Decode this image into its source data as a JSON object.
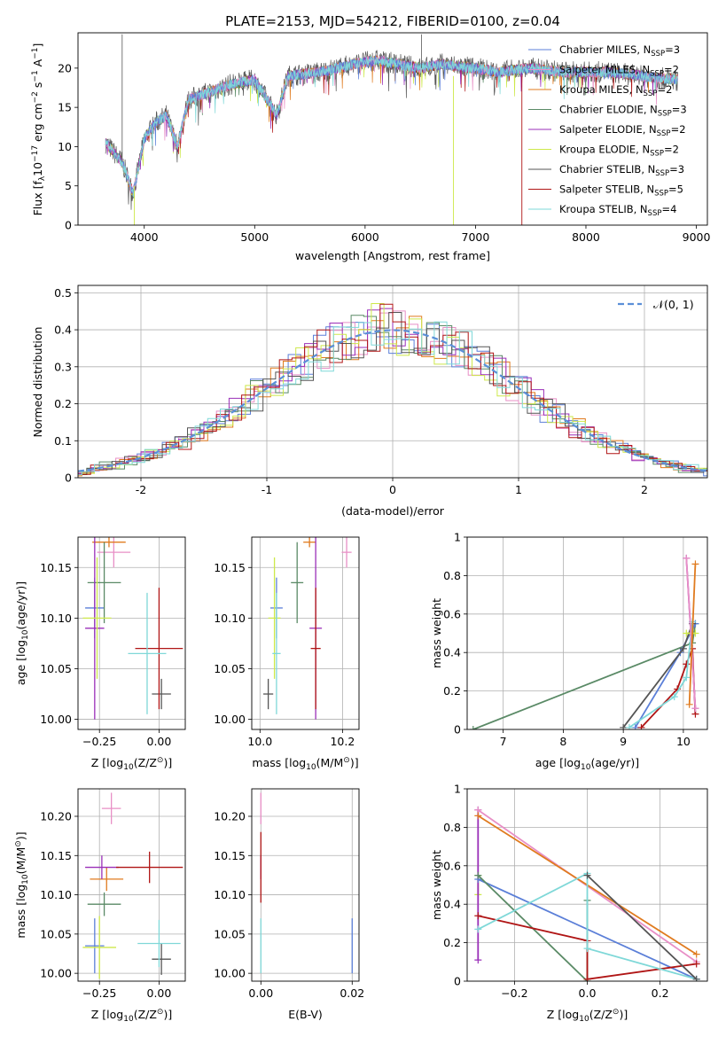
{
  "title": "PLATE=2153, MJD=54212, FIBERID=0100, z=0.04",
  "colors": {
    "chabrier_miles": "#5b7fd8",
    "salpeter_miles": "#e88fc6",
    "kroupa_miles": "#e07b1f",
    "chabrier_elodie": "#5a8a66",
    "salpeter_elodie": "#9a2fb8",
    "kroupa_elodie": "#cde84a",
    "chabrier_stelib": "#555555",
    "salpeter_stelib": "#b01515",
    "kroupa_stelib": "#7fd8d8",
    "normal": "#5b8fd8",
    "grid": "#b0b0b0"
  },
  "chart_data": [
    {
      "id": "spectrum",
      "type": "line",
      "title": "PLATE=2153, MJD=54212, FIBERID=0100, z=0.04",
      "xlabel": "wavelength [Angstrom, rest frame]",
      "ylabel": "Flux [f",
      "ylabel_parts": [
        "Flux [f",
        "λ",
        "10",
        "−17",
        " erg cm",
        "−2",
        " s",
        "−1",
        " A",
        "−1",
        "]"
      ],
      "xlim": [
        3400,
        9100
      ],
      "ylim": [
        0,
        24.5
      ],
      "xticks": [
        4000,
        5000,
        6000,
        7000,
        8000,
        9000
      ],
      "yticks": [
        0,
        5,
        10,
        15,
        20
      ],
      "grid": false,
      "legend_position": "top-right",
      "legend": [
        {
          "name": "Chabrier MILES, N",
          "sub": "SSP",
          "suffix": "=3"
        },
        {
          "name": "Salpeter MILES, N",
          "sub": "SSP",
          "suffix": "=2"
        },
        {
          "name": "Kroupa MILES, N",
          "sub": "SSP",
          "suffix": "=2"
        },
        {
          "name": "Chabrier ELODIE, N",
          "sub": "SSP",
          "suffix": "=3"
        },
        {
          "name": "Salpeter ELODIE, N",
          "sub": "SSP",
          "suffix": "=2"
        },
        {
          "name": "Kroupa ELODIE, N",
          "sub": "SSP",
          "suffix": "=2"
        },
        {
          "name": "Chabrier STELIB, N",
          "sub": "SSP",
          "suffix": "=3"
        },
        {
          "name": "Salpeter STELIB, N",
          "sub": "SSP",
          "suffix": "=5"
        },
        {
          "name": "Kroupa STELIB, N",
          "sub": "SSP",
          "suffix": "=4"
        }
      ],
      "spectrum_range": [
        3650,
        8830
      ],
      "envelope_points": [
        [
          3650,
          10.5
        ],
        [
          3800,
          8
        ],
        [
          3900,
          4
        ],
        [
          4000,
          11
        ],
        [
          4100,
          13
        ],
        [
          4200,
          14
        ],
        [
          4300,
          10
        ],
        [
          4400,
          16
        ],
        [
          4600,
          17
        ],
        [
          4800,
          18
        ],
        [
          5000,
          18.5
        ],
        [
          5200,
          14
        ],
        [
          5300,
          19
        ],
        [
          5600,
          19.5
        ],
        [
          5900,
          20.5
        ],
        [
          6100,
          21
        ],
        [
          6300,
          20.5
        ],
        [
          6500,
          20
        ],
        [
          6700,
          20.5
        ],
        [
          7000,
          20
        ],
        [
          7200,
          19.5
        ],
        [
          7500,
          20
        ],
        [
          7800,
          19.5
        ],
        [
          8200,
          19.5
        ],
        [
          8500,
          19
        ],
        [
          8830,
          18.5
        ]
      ]
    },
    {
      "id": "residuals",
      "type": "histogram",
      "xlabel": "(data-model)/error",
      "ylabel": "Normed distribution",
      "xlim": [
        -2.5,
        2.5
      ],
      "ylim": [
        0,
        0.52
      ],
      "xticks": [
        -2,
        -1,
        0,
        1,
        2
      ],
      "yticks": [
        0.0,
        0.1,
        0.2,
        0.3,
        0.4,
        0.5
      ],
      "grid": true,
      "bin_width": 0.1,
      "legend_position": "top-right",
      "legend_label": "𝒩(0, 1)"
    },
    {
      "id": "age_vs_Z",
      "type": "scatter",
      "xlabel_parts": [
        "Z [log",
        "10",
        "(Z/Z",
        "⊙",
        ")]"
      ],
      "ylabel_parts": [
        "age  [log",
        "10",
        "(age/yr)]"
      ],
      "xlim": [
        -0.34,
        0.11
      ],
      "ylim": [
        9.99,
        10.18
      ],
      "xticks": [
        -0.25,
        0.0
      ],
      "xticklabels": [
        "−0.25",
        "0.00"
      ],
      "yticks": [
        10.0,
        10.05,
        10.1,
        10.15
      ],
      "yticklabels": [
        "10.00",
        "10.05",
        "10.10",
        "10.15"
      ],
      "grid": true,
      "points": [
        {
          "model": "chabrier_miles",
          "x": -0.27,
          "xerr": 0.04,
          "y": 10.11,
          "yerr": 0.03
        },
        {
          "model": "salpeter_miles",
          "x": -0.19,
          "xerr": 0.07,
          "y": 10.165,
          "yerr": 0.015
        },
        {
          "model": "kroupa_miles",
          "x": -0.21,
          "xerr": 0.07,
          "y": 10.175,
          "yerr": 0.005
        },
        {
          "model": "chabrier_elodie",
          "x": -0.23,
          "xerr": 0.07,
          "y": 10.135,
          "yerr": 0.04
        },
        {
          "model": "salpeter_elodie",
          "x": -0.27,
          "xerr": 0.04,
          "y": 10.09,
          "yerr": 0.09
        },
        {
          "model": "kroupa_elodie",
          "x": -0.26,
          "xerr": 0.06,
          "y": 10.1,
          "yerr": 0.06
        },
        {
          "model": "chabrier_stelib",
          "x": 0.01,
          "xerr": 0.04,
          "y": 10.025,
          "yerr": 0.015
        },
        {
          "model": "salpeter_stelib",
          "x": -0.0,
          "xerr": 0.1,
          "y": 10.07,
          "yerr": 0.06
        },
        {
          "model": "kroupa_stelib",
          "x": -0.05,
          "xerr": 0.08,
          "y": 10.065,
          "yerr": 0.06
        }
      ]
    },
    {
      "id": "age_vs_mass",
      "type": "scatter",
      "xlabel_parts": [
        "mass [log",
        "10",
        "(M/M",
        "⊙",
        ")]"
      ],
      "xlim": [
        9.98,
        10.24
      ],
      "ylim": [
        9.99,
        10.18
      ],
      "xticks": [
        10.0,
        10.2
      ],
      "xticklabels": [
        "10.0",
        "10.2"
      ],
      "yticks": [
        10.0,
        10.05,
        10.1,
        10.15
      ],
      "yticklabels": [
        "10.00",
        "10.05",
        "10.10",
        "10.15"
      ],
      "grid": true,
      "points": [
        {
          "model": "chabrier_miles",
          "x": 10.04,
          "xerr": 0.015,
          "y": 10.11,
          "yerr": 0.03
        },
        {
          "model": "salpeter_miles",
          "x": 10.21,
          "xerr": 0.012,
          "y": 10.165,
          "yerr": 0.015
        },
        {
          "model": "kroupa_miles",
          "x": 10.12,
          "xerr": 0.015,
          "y": 10.175,
          "yerr": 0.005
        },
        {
          "model": "chabrier_elodie",
          "x": 10.09,
          "xerr": 0.015,
          "y": 10.135,
          "yerr": 0.04
        },
        {
          "model": "salpeter_elodie",
          "x": 10.135,
          "xerr": 0.015,
          "y": 10.09,
          "yerr": 0.09
        },
        {
          "model": "kroupa_elodie",
          "x": 10.035,
          "xerr": 0.015,
          "y": 10.1,
          "yerr": 0.06
        },
        {
          "model": "chabrier_stelib",
          "x": 10.02,
          "xerr": 0.012,
          "y": 10.025,
          "yerr": 0.015
        },
        {
          "model": "salpeter_stelib",
          "x": 10.135,
          "xerr": 0.012,
          "y": 10.07,
          "yerr": 0.06
        },
        {
          "model": "kroupa_stelib",
          "x": 10.04,
          "xerr": 0.01,
          "y": 10.065,
          "yerr": 0.06
        }
      ]
    },
    {
      "id": "weight_vs_age",
      "type": "line",
      "xlabel_parts": [
        "age  [log",
        "10",
        "(age/yr)]"
      ],
      "ylabel": "mass weight",
      "xlim": [
        6.4,
        10.4
      ],
      "ylim": [
        0,
        1.0
      ],
      "xticks": [
        7,
        8,
        9,
        10
      ],
      "yticks": [
        0.0,
        0.2,
        0.4,
        0.6,
        0.8,
        1.0
      ],
      "grid": true,
      "series": [
        {
          "model": "chabrier_elodie",
          "x": [
            6.5,
            10.15,
            10.2
          ],
          "y": [
            0.0,
            0.45,
            0.55
          ]
        },
        {
          "model": "chabrier_miles",
          "x": [
            9.2,
            9.95,
            10.2
          ],
          "y": [
            0.01,
            0.4,
            0.55
          ]
        },
        {
          "model": "chabrier_stelib",
          "x": [
            9.0,
            10.0,
            10.15
          ],
          "y": [
            0.01,
            0.42,
            0.55
          ]
        },
        {
          "model": "salpeter_stelib",
          "x": [
            9.3,
            9.9,
            10.05,
            10.15,
            10.2
          ],
          "y": [
            0.01,
            0.21,
            0.34,
            0.42,
            0.08
          ]
        },
        {
          "model": "kroupa_stelib",
          "x": [
            9.1,
            9.85,
            10.05,
            10.15
          ],
          "y": [
            0.01,
            0.17,
            0.27,
            0.56
          ]
        },
        {
          "model": "salpeter_elodie",
          "x": [
            10.05,
            10.2
          ],
          "y": [
            0.89,
            0.11
          ]
        },
        {
          "model": "kroupa_elodie",
          "x": [
            10.05,
            10.2
          ],
          "y": [
            0.5,
            0.5
          ]
        },
        {
          "model": "salpeter_miles",
          "x": [
            10.05,
            10.2
          ],
          "y": [
            0.89,
            0.11
          ]
        },
        {
          "model": "kroupa_miles",
          "x": [
            10.1,
            10.2
          ],
          "y": [
            0.13,
            0.86
          ]
        }
      ]
    },
    {
      "id": "mass_vs_Z",
      "type": "scatter",
      "xlabel_parts": [
        "Z [log",
        "10",
        "(Z/Z",
        "⊙",
        ")]"
      ],
      "ylabel_parts": [
        "mass [log",
        "10",
        "(M/M",
        "⊙",
        ")]"
      ],
      "xlim": [
        -0.34,
        0.11
      ],
      "ylim": [
        9.99,
        10.235
      ],
      "xticks": [
        -0.25,
        0.0
      ],
      "xticklabels": [
        "−0.25",
        "0.00"
      ],
      "yticks": [
        10.0,
        10.05,
        10.1,
        10.15,
        10.2
      ],
      "yticklabels": [
        "10.00",
        "10.05",
        "10.10",
        "10.15",
        "10.20"
      ],
      "grid": true,
      "points": [
        {
          "model": "chabrier_miles",
          "x": -0.27,
          "xerr": 0.04,
          "y": 10.035,
          "yerr": 0.035
        },
        {
          "model": "salpeter_miles",
          "x": -0.2,
          "xerr": 0.04,
          "y": 10.21,
          "yerr": 0.02
        },
        {
          "model": "kroupa_miles",
          "x": -0.22,
          "xerr": 0.07,
          "y": 10.12,
          "yerr": 0.015
        },
        {
          "model": "chabrier_elodie",
          "x": -0.23,
          "xerr": 0.07,
          "y": 10.088,
          "yerr": 0.015
        },
        {
          "model": "salpeter_elodie",
          "x": -0.24,
          "xerr": 0.07,
          "y": 10.135,
          "yerr": 0.015
        },
        {
          "model": "kroupa_elodie",
          "x": -0.25,
          "xerr": 0.07,
          "y": 10.033,
          "yerr": 0.04
        },
        {
          "model": "chabrier_stelib",
          "x": 0.01,
          "xerr": 0.04,
          "y": 10.018,
          "yerr": 0.02
        },
        {
          "model": "salpeter_stelib",
          "x": -0.04,
          "xerr": 0.14,
          "y": 10.135,
          "yerr": 0.02
        },
        {
          "model": "kroupa_stelib",
          "x": 0.0,
          "xerr": 0.09,
          "y": 10.038,
          "yerr": 0.03
        }
      ]
    },
    {
      "id": "mass_vs_ebv",
      "type": "scatter",
      "xlabel": "E(B-V)",
      "xlim": [
        -0.002,
        0.0215
      ],
      "ylim": [
        9.99,
        10.235
      ],
      "xticks": [
        0.0,
        0.02
      ],
      "xticklabels": [
        "0.00",
        "0.02"
      ],
      "yticks": [
        10.0,
        10.05,
        10.1,
        10.15,
        10.2
      ],
      "yticklabels": [
        "10.00",
        "10.05",
        "10.10",
        "10.15",
        "10.20"
      ],
      "grid": true,
      "points": [
        {
          "model": "salpeter_miles",
          "x": 0.0,
          "y": 10.21,
          "yerr": 0.02
        },
        {
          "model": "salpeter_elodie",
          "x": 0.0,
          "y": 10.135,
          "yerr": 0.015
        },
        {
          "model": "salpeter_stelib",
          "x": 0.0,
          "y": 10.135,
          "yerr": 0.045
        },
        {
          "model": "kroupa_stelib",
          "x": 0.0,
          "y": 10.035,
          "yerr": 0.035
        },
        {
          "model": "chabrier_miles",
          "x": 0.02,
          "y": 10.035,
          "yerr": 0.035
        }
      ]
    },
    {
      "id": "weight_vs_Z",
      "type": "line",
      "xlabel_parts": [
        "Z [log",
        "10",
        "(Z/Z",
        "⊙",
        ")]"
      ],
      "ylabel": "mass weight",
      "xlim": [
        -0.33,
        0.33
      ],
      "ylim": [
        0,
        1.0
      ],
      "xticks": [
        -0.2,
        0.0,
        0.2
      ],
      "xticklabels": [
        "−0.2",
        "0.0",
        "0.2"
      ],
      "yticks": [
        0.0,
        0.2,
        0.4,
        0.6,
        0.8,
        1.0
      ],
      "grid": true,
      "series": [
        {
          "model": "kroupa_elodie",
          "x": [
            -0.3,
            -0.3
          ],
          "y": [
            0.55,
            0.45
          ]
        },
        {
          "model": "salpeter_elodie",
          "x": [
            -0.3,
            -0.3
          ],
          "y": [
            0.89,
            0.11
          ]
        },
        {
          "model": "salpeter_miles",
          "x": [
            -0.3,
            0.3
          ],
          "y": [
            0.89,
            0.1
          ]
        },
        {
          "model": "kroupa_miles",
          "x": [
            -0.3,
            0.3
          ],
          "y": [
            0.86,
            0.14
          ]
        },
        {
          "model": "chabrier_miles",
          "x": [
            -0.3,
            0.3
          ],
          "y": [
            0.53,
            0.01
          ]
        },
        {
          "model": "chabrier_elodie",
          "x": [
            -0.3,
            0.0,
            0.0
          ],
          "y": [
            0.55,
            0.0,
            0.42
          ]
        },
        {
          "model": "salpeter_stelib",
          "x": [
            -0.3,
            0.0,
            0.0,
            0.3
          ],
          "y": [
            0.34,
            0.21,
            0.01,
            0.09
          ]
        },
        {
          "model": "kroupa_stelib",
          "x": [
            -0.3,
            0.0,
            0.0,
            0.3
          ],
          "y": [
            0.27,
            0.56,
            0.17,
            0.01
          ]
        },
        {
          "model": "chabrier_stelib",
          "x": [
            0.0,
            0.3
          ],
          "y": [
            0.55,
            0.01
          ]
        }
      ]
    }
  ]
}
